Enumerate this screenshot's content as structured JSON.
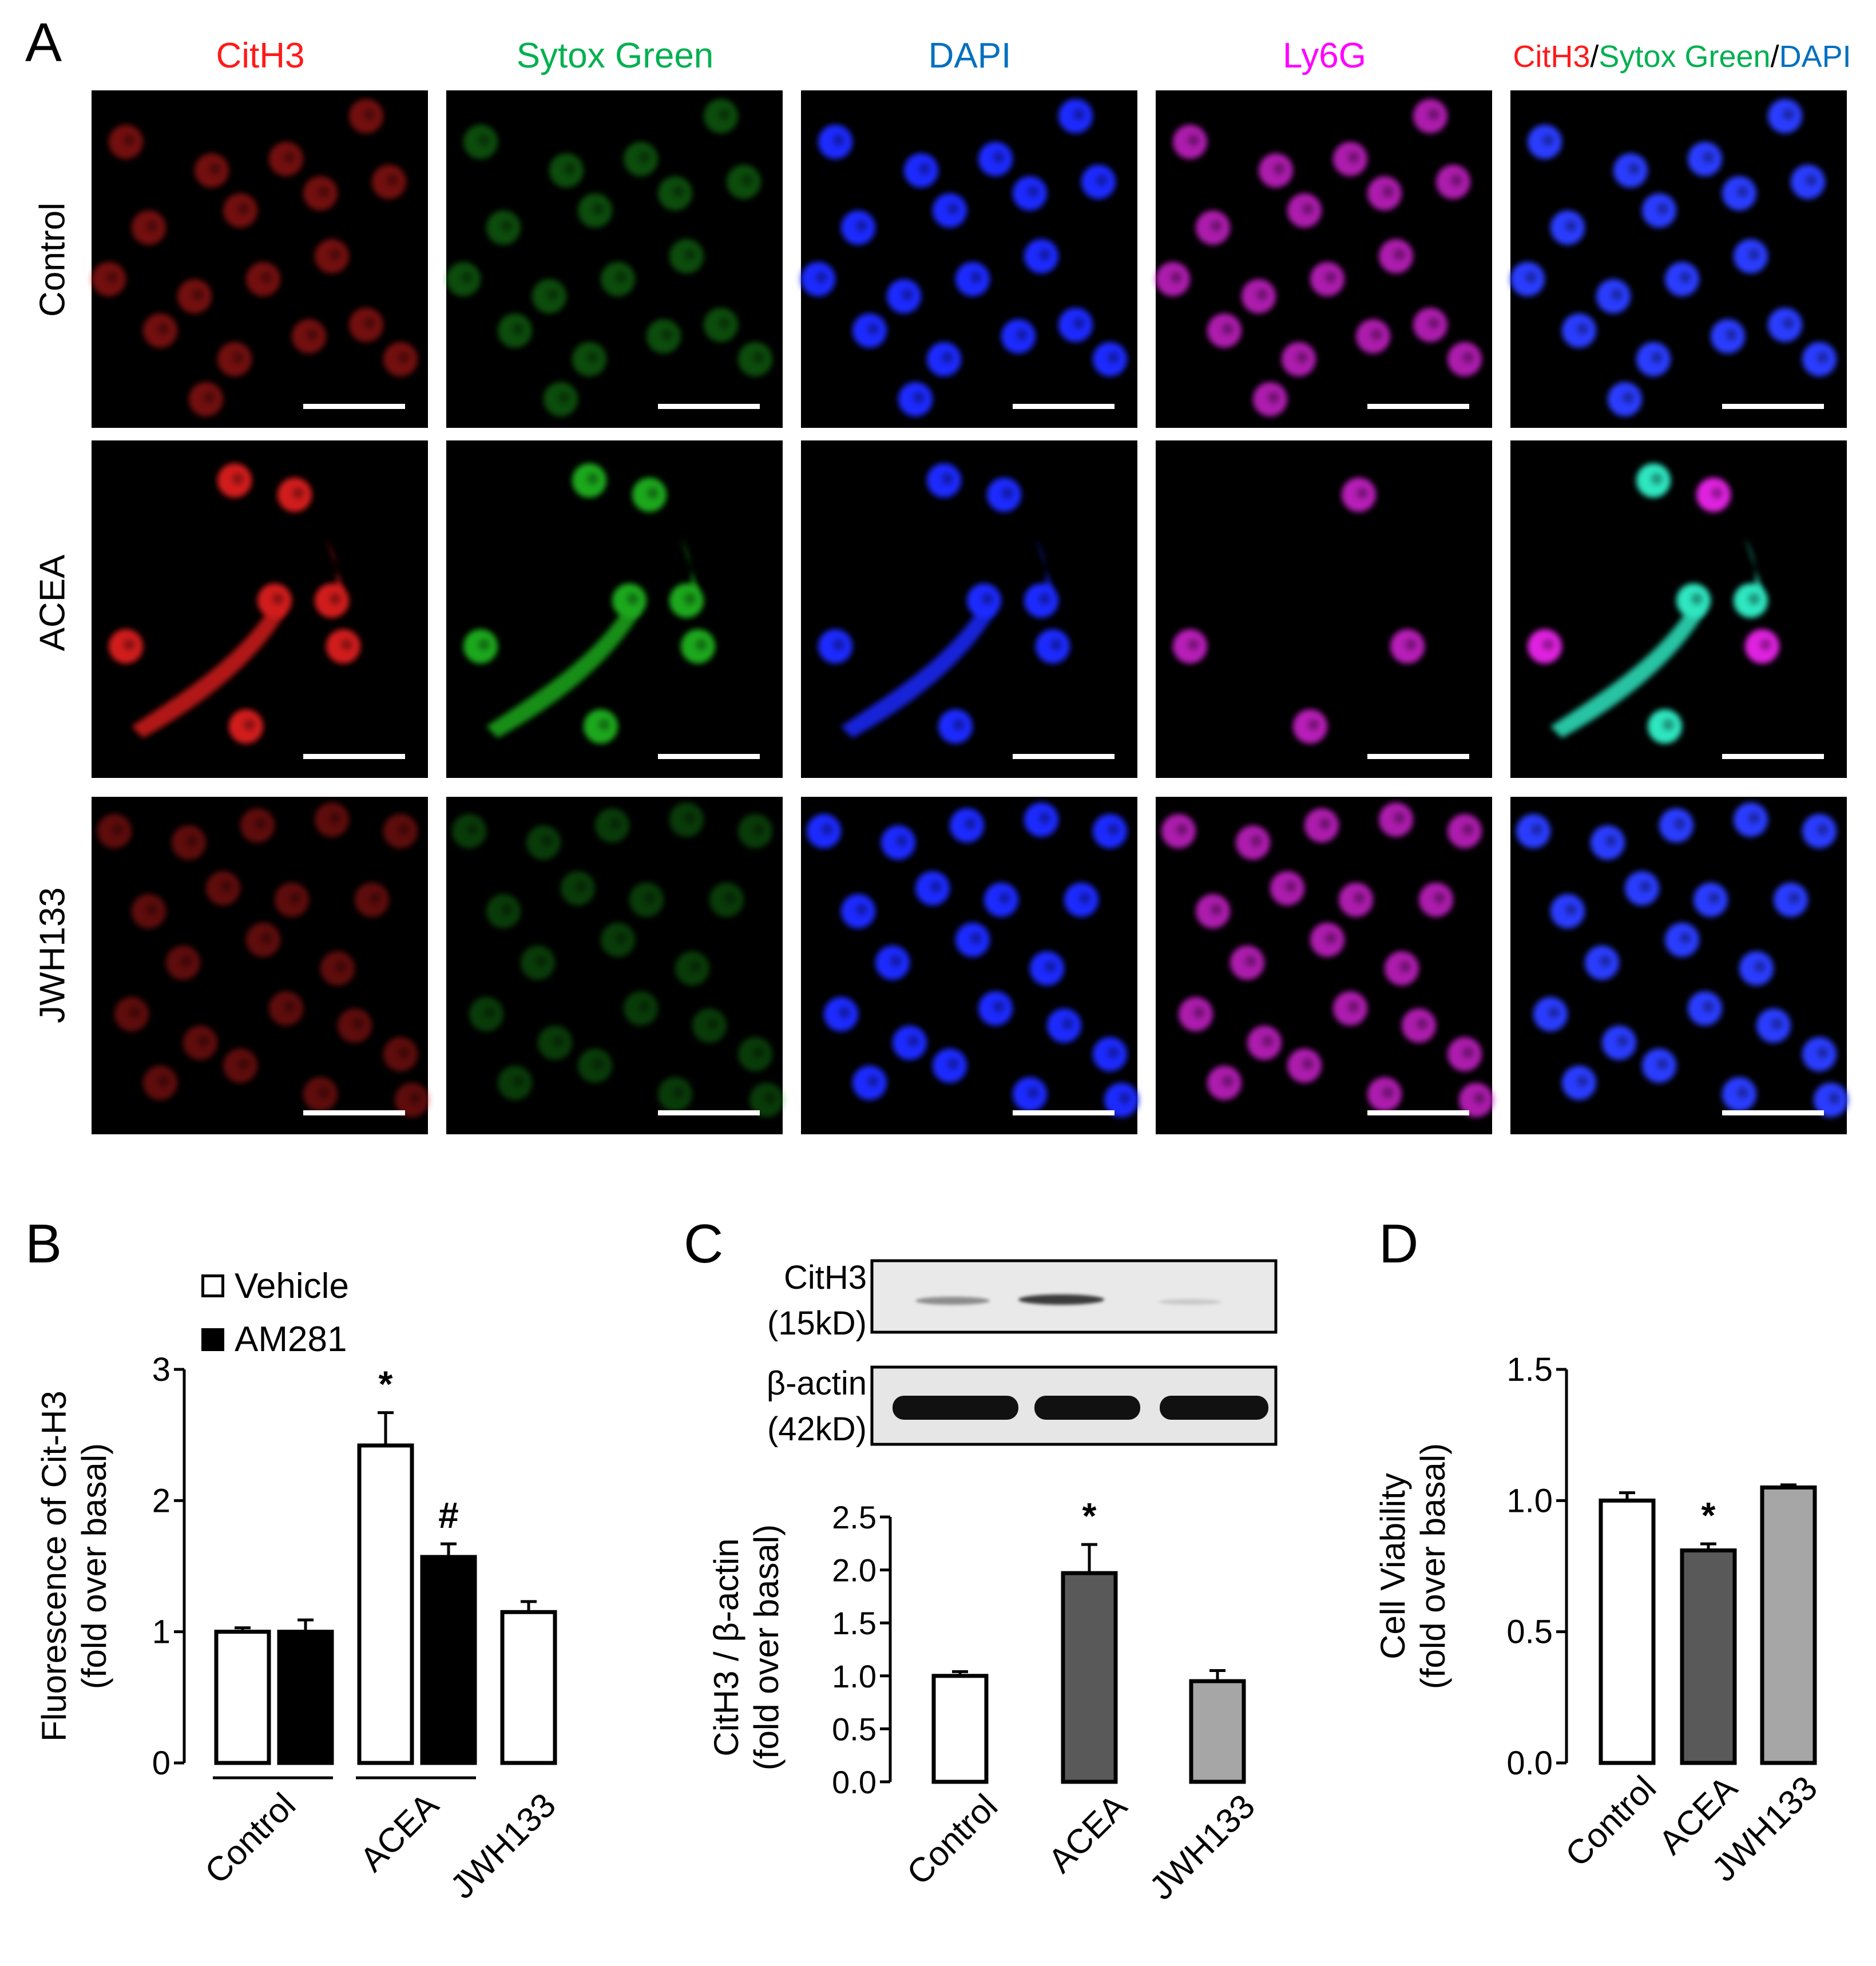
{
  "panel_letters": {
    "a": "A",
    "b": "B",
    "c": "C",
    "d": "D"
  },
  "panel_a": {
    "columns": [
      {
        "label": "CitH3",
        "color": "#ff1a1a"
      },
      {
        "label": "Sytox Green",
        "color": "#00b050"
      },
      {
        "label": "DAPI",
        "color": "#0070c0"
      },
      {
        "label": "Ly6G",
        "color": "#ff00ff"
      },
      {
        "label": "merge"
      }
    ],
    "merge_label": {
      "part1": "CitH3",
      "sep1": "/",
      "part2": "Sytox Green",
      "sep2": "/",
      "part3": "DAPI"
    },
    "rows": [
      "Control",
      "ACEA",
      "JWH133"
    ],
    "channel_colors": [
      "#d21c1c",
      "#1fa81f",
      "#1e2aff",
      "#cc20cc",
      "#2a3cff"
    ]
  },
  "legend_b": {
    "vehicle": "Vehicle",
    "am281": "AM281"
  },
  "blot": {
    "band1_name": "CitH3",
    "band1_size": "(15kD)",
    "band2_name": "β-actin",
    "band2_size": "(42kD)"
  },
  "chart_data": [
    {
      "panel": "B",
      "type": "bar",
      "ylabel_line1": "Fluorescence of Cit-H3",
      "ylabel_line2": "(fold over basal)",
      "ylim": [
        0,
        3
      ],
      "yticks": [
        "0",
        "1",
        "2",
        "3"
      ],
      "groups": [
        "Control",
        "ACEA",
        "JWH133"
      ],
      "series": [
        {
          "name": "Vehicle",
          "values": [
            1.0,
            2.42,
            1.15
          ],
          "errors": [
            0.03,
            0.25,
            0.08
          ]
        },
        {
          "name": "AM281",
          "values": [
            1.0,
            1.57,
            null
          ],
          "errors": [
            0.09,
            0.1,
            null
          ]
        }
      ],
      "annotations": [
        {
          "text": "*",
          "group": "ACEA",
          "series": "Vehicle"
        },
        {
          "text": "#",
          "group": "ACEA",
          "series": "AM281"
        }
      ]
    },
    {
      "panel": "C",
      "type": "bar",
      "ylabel_line1": "CitH3 / β-actin",
      "ylabel_line2": "(fold over basal)",
      "ylim": [
        0,
        2.5
      ],
      "yticks": [
        "0.0",
        "0.5",
        "1.0",
        "1.5",
        "2.0",
        "2.5"
      ],
      "categories": [
        "Control",
        "ACEA",
        "JWH133"
      ],
      "values": [
        1.0,
        1.97,
        0.95
      ],
      "errors": [
        0.04,
        0.27,
        0.1
      ],
      "colors": [
        "#ffffff",
        "#595959",
        "#a6a6a6"
      ],
      "annotations": [
        {
          "text": "*",
          "category": "ACEA"
        }
      ]
    },
    {
      "panel": "D",
      "type": "bar",
      "ylabel_line1": "Cell Viability",
      "ylabel_line2": "(fold over basal)",
      "ylim": [
        0,
        1.5
      ],
      "yticks": [
        "0.0",
        "0.5",
        "1.0",
        "1.5"
      ],
      "categories": [
        "Control",
        "ACEA",
        "JWH133"
      ],
      "values": [
        1.0,
        0.81,
        1.05
      ],
      "errors": [
        0.03,
        0.025,
        0.01
      ],
      "colors": [
        "#ffffff",
        "#595959",
        "#a6a6a6"
      ],
      "annotations": [
        {
          "text": "*",
          "category": "ACEA"
        }
      ]
    }
  ]
}
